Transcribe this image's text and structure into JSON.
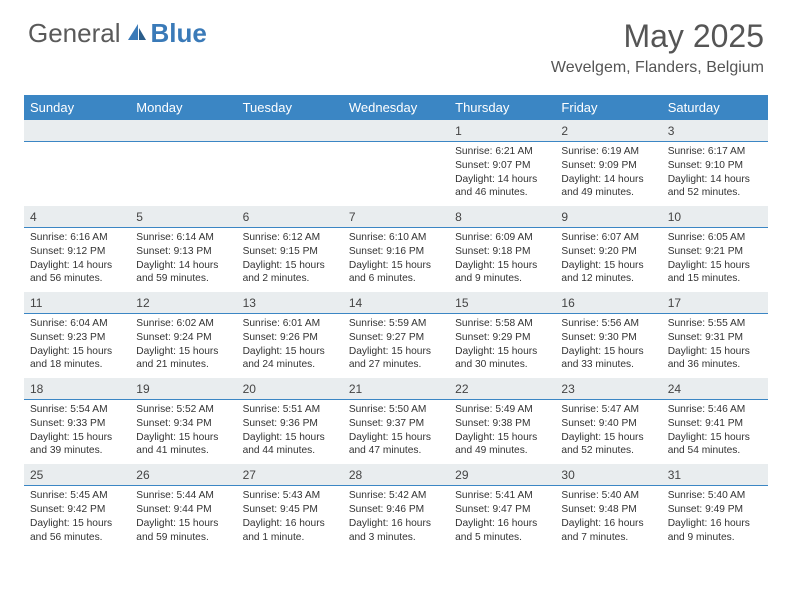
{
  "logo": {
    "left": "General",
    "right": "Blue"
  },
  "title": "May 2025",
  "location": "Wevelgem, Flanders, Belgium",
  "colors": {
    "header_bg": "#3b86c4",
    "label_bg": "#e9edef",
    "rule": "#3b86c4",
    "text": "#333333",
    "title_text": "#555555",
    "logo_grey": "#5a5a5a",
    "logo_blue": "#3a7ab8"
  },
  "dayNames": [
    "Sunday",
    "Monday",
    "Tuesday",
    "Wednesday",
    "Thursday",
    "Friday",
    "Saturday"
  ],
  "weeks": [
    [
      {
        "num": "",
        "sunrise": "",
        "sunset": "",
        "daylight": ""
      },
      {
        "num": "",
        "sunrise": "",
        "sunset": "",
        "daylight": ""
      },
      {
        "num": "",
        "sunrise": "",
        "sunset": "",
        "daylight": ""
      },
      {
        "num": "",
        "sunrise": "",
        "sunset": "",
        "daylight": ""
      },
      {
        "num": "1",
        "sunrise": "Sunrise: 6:21 AM",
        "sunset": "Sunset: 9:07 PM",
        "daylight": "Daylight: 14 hours and 46 minutes."
      },
      {
        "num": "2",
        "sunrise": "Sunrise: 6:19 AM",
        "sunset": "Sunset: 9:09 PM",
        "daylight": "Daylight: 14 hours and 49 minutes."
      },
      {
        "num": "3",
        "sunrise": "Sunrise: 6:17 AM",
        "sunset": "Sunset: 9:10 PM",
        "daylight": "Daylight: 14 hours and 52 minutes."
      }
    ],
    [
      {
        "num": "4",
        "sunrise": "Sunrise: 6:16 AM",
        "sunset": "Sunset: 9:12 PM",
        "daylight": "Daylight: 14 hours and 56 minutes."
      },
      {
        "num": "5",
        "sunrise": "Sunrise: 6:14 AM",
        "sunset": "Sunset: 9:13 PM",
        "daylight": "Daylight: 14 hours and 59 minutes."
      },
      {
        "num": "6",
        "sunrise": "Sunrise: 6:12 AM",
        "sunset": "Sunset: 9:15 PM",
        "daylight": "Daylight: 15 hours and 2 minutes."
      },
      {
        "num": "7",
        "sunrise": "Sunrise: 6:10 AM",
        "sunset": "Sunset: 9:16 PM",
        "daylight": "Daylight: 15 hours and 6 minutes."
      },
      {
        "num": "8",
        "sunrise": "Sunrise: 6:09 AM",
        "sunset": "Sunset: 9:18 PM",
        "daylight": "Daylight: 15 hours and 9 minutes."
      },
      {
        "num": "9",
        "sunrise": "Sunrise: 6:07 AM",
        "sunset": "Sunset: 9:20 PM",
        "daylight": "Daylight: 15 hours and 12 minutes."
      },
      {
        "num": "10",
        "sunrise": "Sunrise: 6:05 AM",
        "sunset": "Sunset: 9:21 PM",
        "daylight": "Daylight: 15 hours and 15 minutes."
      }
    ],
    [
      {
        "num": "11",
        "sunrise": "Sunrise: 6:04 AM",
        "sunset": "Sunset: 9:23 PM",
        "daylight": "Daylight: 15 hours and 18 minutes."
      },
      {
        "num": "12",
        "sunrise": "Sunrise: 6:02 AM",
        "sunset": "Sunset: 9:24 PM",
        "daylight": "Daylight: 15 hours and 21 minutes."
      },
      {
        "num": "13",
        "sunrise": "Sunrise: 6:01 AM",
        "sunset": "Sunset: 9:26 PM",
        "daylight": "Daylight: 15 hours and 24 minutes."
      },
      {
        "num": "14",
        "sunrise": "Sunrise: 5:59 AM",
        "sunset": "Sunset: 9:27 PM",
        "daylight": "Daylight: 15 hours and 27 minutes."
      },
      {
        "num": "15",
        "sunrise": "Sunrise: 5:58 AM",
        "sunset": "Sunset: 9:29 PM",
        "daylight": "Daylight: 15 hours and 30 minutes."
      },
      {
        "num": "16",
        "sunrise": "Sunrise: 5:56 AM",
        "sunset": "Sunset: 9:30 PM",
        "daylight": "Daylight: 15 hours and 33 minutes."
      },
      {
        "num": "17",
        "sunrise": "Sunrise: 5:55 AM",
        "sunset": "Sunset: 9:31 PM",
        "daylight": "Daylight: 15 hours and 36 minutes."
      }
    ],
    [
      {
        "num": "18",
        "sunrise": "Sunrise: 5:54 AM",
        "sunset": "Sunset: 9:33 PM",
        "daylight": "Daylight: 15 hours and 39 minutes."
      },
      {
        "num": "19",
        "sunrise": "Sunrise: 5:52 AM",
        "sunset": "Sunset: 9:34 PM",
        "daylight": "Daylight: 15 hours and 41 minutes."
      },
      {
        "num": "20",
        "sunrise": "Sunrise: 5:51 AM",
        "sunset": "Sunset: 9:36 PM",
        "daylight": "Daylight: 15 hours and 44 minutes."
      },
      {
        "num": "21",
        "sunrise": "Sunrise: 5:50 AM",
        "sunset": "Sunset: 9:37 PM",
        "daylight": "Daylight: 15 hours and 47 minutes."
      },
      {
        "num": "22",
        "sunrise": "Sunrise: 5:49 AM",
        "sunset": "Sunset: 9:38 PM",
        "daylight": "Daylight: 15 hours and 49 minutes."
      },
      {
        "num": "23",
        "sunrise": "Sunrise: 5:47 AM",
        "sunset": "Sunset: 9:40 PM",
        "daylight": "Daylight: 15 hours and 52 minutes."
      },
      {
        "num": "24",
        "sunrise": "Sunrise: 5:46 AM",
        "sunset": "Sunset: 9:41 PM",
        "daylight": "Daylight: 15 hours and 54 minutes."
      }
    ],
    [
      {
        "num": "25",
        "sunrise": "Sunrise: 5:45 AM",
        "sunset": "Sunset: 9:42 PM",
        "daylight": "Daylight: 15 hours and 56 minutes."
      },
      {
        "num": "26",
        "sunrise": "Sunrise: 5:44 AM",
        "sunset": "Sunset: 9:44 PM",
        "daylight": "Daylight: 15 hours and 59 minutes."
      },
      {
        "num": "27",
        "sunrise": "Sunrise: 5:43 AM",
        "sunset": "Sunset: 9:45 PM",
        "daylight": "Daylight: 16 hours and 1 minute."
      },
      {
        "num": "28",
        "sunrise": "Sunrise: 5:42 AM",
        "sunset": "Sunset: 9:46 PM",
        "daylight": "Daylight: 16 hours and 3 minutes."
      },
      {
        "num": "29",
        "sunrise": "Sunrise: 5:41 AM",
        "sunset": "Sunset: 9:47 PM",
        "daylight": "Daylight: 16 hours and 5 minutes."
      },
      {
        "num": "30",
        "sunrise": "Sunrise: 5:40 AM",
        "sunset": "Sunset: 9:48 PM",
        "daylight": "Daylight: 16 hours and 7 minutes."
      },
      {
        "num": "31",
        "sunrise": "Sunrise: 5:40 AM",
        "sunset": "Sunset: 9:49 PM",
        "daylight": "Daylight: 16 hours and 9 minutes."
      }
    ]
  ]
}
